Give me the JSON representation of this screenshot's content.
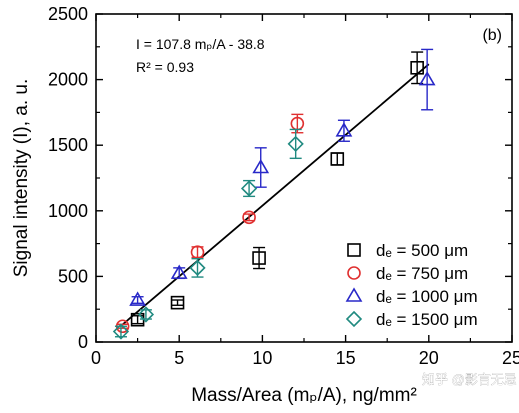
{
  "chart_data": {
    "type": "scatter",
    "panel_label": "(b)",
    "xlabel": "Mass/Area (mₚ/A), ng/mm²",
    "ylabel": "Signal intensity (I), a. u.",
    "xlim": [
      0,
      25
    ],
    "ylim": [
      0,
      2500
    ],
    "xticks": [
      "0",
      "5",
      "10",
      "15",
      "20",
      "25"
    ],
    "yticks": [
      "0",
      "500",
      "1000",
      "1500",
      "2000",
      "2500"
    ],
    "annotations": {
      "equation": "I = 107.8 mₚ/A - 38.8",
      "r2": "R² = 0.93"
    },
    "fit_line": {
      "slope": 107.8,
      "intercept": -38.8,
      "x_range": [
        1.5,
        20
      ]
    },
    "legend_position": "bottom-right",
    "grid": false,
    "series": [
      {
        "name": "dₑ = 500 μm",
        "marker": "square",
        "color": "#000000",
        "points": [
          {
            "x": 2.5,
            "y": 170,
            "err": 30
          },
          {
            "x": 4.9,
            "y": 300,
            "err": 20
          },
          {
            "x": 9.8,
            "y": 640,
            "err": 80
          },
          {
            "x": 14.5,
            "y": 1395,
            "err": 45
          },
          {
            "x": 19.3,
            "y": 2090,
            "err": 120
          }
        ]
      },
      {
        "name": "dₑ = 750 μm",
        "marker": "circle",
        "color": "#e03030",
        "points": [
          {
            "x": 1.6,
            "y": 120,
            "err": 15
          },
          {
            "x": 6.1,
            "y": 685,
            "err": 40
          },
          {
            "x": 9.2,
            "y": 950,
            "err": 25
          },
          {
            "x": 12.1,
            "y": 1665,
            "err": 70
          }
        ]
      },
      {
        "name": "dₑ = 1000 μm",
        "marker": "triangle",
        "color": "#2828c8",
        "points": [
          {
            "x": 2.5,
            "y": 320,
            "err": 25
          },
          {
            "x": 5.0,
            "y": 525,
            "err": 40
          },
          {
            "x": 9.9,
            "y": 1330,
            "err": 150
          },
          {
            "x": 14.9,
            "y": 1610,
            "err": 80
          },
          {
            "x": 19.9,
            "y": 2000,
            "err": 230
          }
        ]
      },
      {
        "name": "dₑ = 1500 μm",
        "marker": "diamond",
        "color": "#208a80",
        "points": [
          {
            "x": 1.5,
            "y": 80,
            "err": 40
          },
          {
            "x": 3.0,
            "y": 210,
            "err": 35
          },
          {
            "x": 6.1,
            "y": 565,
            "err": 70
          },
          {
            "x": 9.2,
            "y": 1170,
            "err": 60
          },
          {
            "x": 12.0,
            "y": 1510,
            "err": 110
          }
        ]
      }
    ]
  },
  "watermark": "知乎 @影言无忌"
}
